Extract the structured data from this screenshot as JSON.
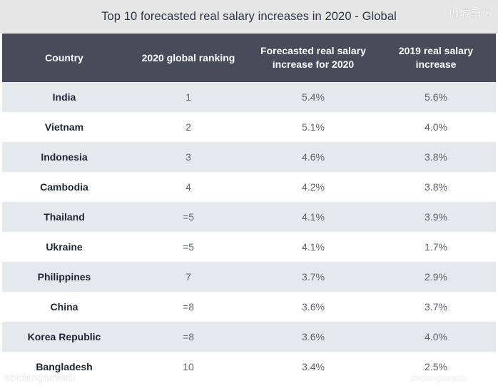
{
  "title": "Top 10 forecasted real salary increases in 2020 - Global",
  "watermarks": {
    "top_right": "狮城新闻",
    "bottom_left": "sbiclengneweb",
    "bottom_right": "sbiclengneweb"
  },
  "colors": {
    "title_bar": "#e6e6e6",
    "header": "#474b5a",
    "row_shaded": "#e5e9ee",
    "row_plain": "#ffffff"
  },
  "chart_data": {
    "type": "table",
    "title": "Top 10 forecasted real salary increases in 2020 - Global",
    "columns": [
      "Country",
      "2020 global ranking",
      "Forecasted real salary increase for 2020",
      "2019 real salary increase"
    ],
    "rows": [
      [
        "India",
        "1",
        "5.4%",
        "5.6%"
      ],
      [
        "Vietnam",
        "2",
        "5.1%",
        "4.0%"
      ],
      [
        "Indonesia",
        "3",
        "4.6%",
        "3.8%"
      ],
      [
        "Cambodia",
        "4",
        "4.2%",
        "3.8%"
      ],
      [
        "Thailand",
        "=5",
        "4.1%",
        "3.9%"
      ],
      [
        "Ukraine",
        "=5",
        "4.1%",
        "1.7%"
      ],
      [
        "Philippines",
        "7",
        "3.7%",
        "2.9%"
      ],
      [
        "China",
        "=8",
        "3.6%",
        "3.7%"
      ],
      [
        "Korea Republic",
        "=8",
        "3.6%",
        "4.0%"
      ],
      [
        "Bangladesh",
        "10",
        "3.4%",
        "2.5%"
      ]
    ]
  }
}
